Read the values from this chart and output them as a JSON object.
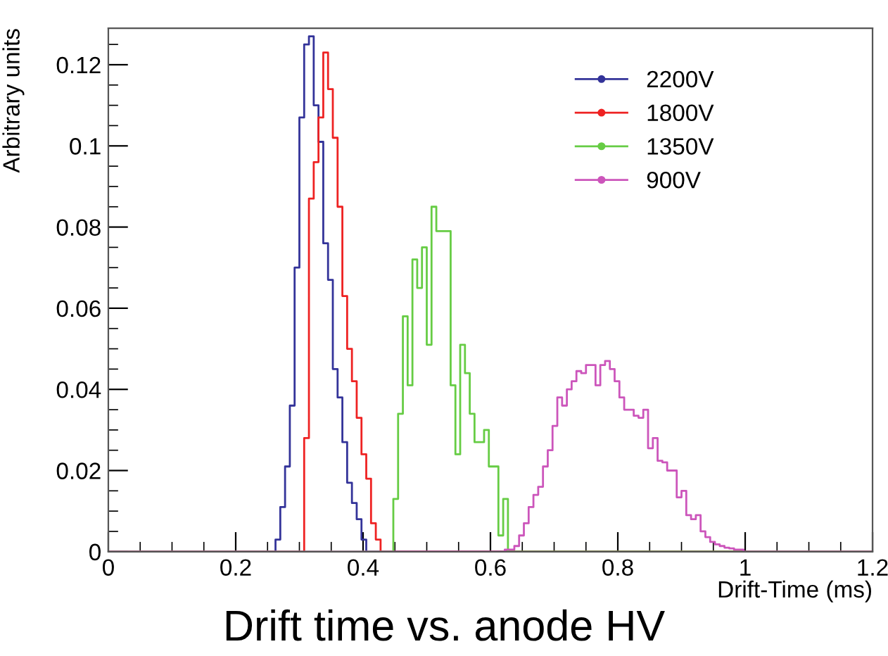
{
  "chart_data": {
    "type": "step",
    "title": "Drift time vs. anode HV",
    "xlabel": "Drift-Time (ms)",
    "ylabel": "Arbitrary units",
    "xlim": [
      0,
      1.2
    ],
    "ylim": [
      0,
      0.129
    ],
    "xticks": [
      0,
      0.2,
      0.4,
      0.6,
      0.8,
      1,
      1.2
    ],
    "yticks": [
      0,
      0.02,
      0.04,
      0.06,
      0.08,
      0.1,
      0.12
    ],
    "legend": "top right",
    "grid": false,
    "series": [
      {
        "name": "2200V",
        "color": "#333399",
        "x": [
          0,
          0.2625,
          0.27,
          0.2775,
          0.285,
          0.2925,
          0.3,
          0.3075,
          0.315,
          0.3225,
          0.33,
          0.3375,
          0.345,
          0.3525,
          0.36,
          0.3675,
          0.375,
          0.3825,
          0.39,
          0.3975,
          0.405,
          1.2
        ],
        "values": [
          0,
          0.003,
          0.011,
          0.021,
          0.036,
          0.07,
          0.107,
          0.125,
          0.127,
          0.11,
          0.101,
          0.076,
          0.067,
          0.045,
          0.038,
          0.027,
          0.017,
          0.012,
          0.008,
          0.003,
          0,
          0
        ]
      },
      {
        "name": "1800V",
        "color": "#ee2222",
        "x": [
          0,
          0.3075,
          0.315,
          0.3225,
          0.33,
          0.3375,
          0.345,
          0.3525,
          0.36,
          0.3675,
          0.375,
          0.3825,
          0.39,
          0.3975,
          0.405,
          0.4125,
          0.42,
          0.4275,
          1.2
        ],
        "values": [
          0,
          0.028,
          0.087,
          0.096,
          0.107,
          0.123,
          0.114,
          0.102,
          0.085,
          0.063,
          0.05,
          0.042,
          0.033,
          0.024,
          0.018,
          0.007,
          0.003,
          0,
          0
        ]
      },
      {
        "name": "1350V",
        "color": "#66cc44",
        "x": [
          0,
          0.4475,
          0.455,
          0.4625,
          0.47,
          0.4775,
          0.485,
          0.4925,
          0.5,
          0.5075,
          0.515,
          0.5225,
          0.53,
          0.5375,
          0.545,
          0.5525,
          0.56,
          0.5675,
          0.575,
          0.5825,
          0.59,
          0.5975,
          0.605,
          0.6125,
          0.62,
          0.6275,
          1.2
        ],
        "values": [
          0,
          0.013,
          0.034,
          0.058,
          0.041,
          0.072,
          0.065,
          0.075,
          0.051,
          0.085,
          0.079,
          0.079,
          0.079,
          0.041,
          0.024,
          0.051,
          0.044,
          0.034,
          0.027,
          0.027,
          0.03,
          0.021,
          0.021,
          0.004,
          0.013,
          0,
          0
        ]
      },
      {
        "name": "900V",
        "color": "#cc55bb",
        "x": [
          0,
          0.6225,
          0.63,
          0.6375,
          0.645,
          0.6525,
          0.66,
          0.6675,
          0.675,
          0.6825,
          0.69,
          0.6975,
          0.705,
          0.7125,
          0.72,
          0.7275,
          0.735,
          0.7425,
          0.75,
          0.7575,
          0.765,
          0.7725,
          0.78,
          0.7875,
          0.795,
          0.8025,
          0.81,
          0.8175,
          0.825,
          0.8325,
          0.84,
          0.8475,
          0.855,
          0.8625,
          0.87,
          0.8775,
          0.885,
          0.8925,
          0.9,
          0.9075,
          0.915,
          0.9225,
          0.93,
          0.9375,
          0.945,
          0.9525,
          0.96,
          0.9675,
          0.975,
          0.9825,
          0.99,
          0.9975,
          1.2
        ],
        "values": [
          0,
          0.0005,
          0.0005,
          0.0014,
          0.004,
          0.007,
          0.011,
          0.014,
          0.016,
          0.021,
          0.025,
          0.031,
          0.038,
          0.036,
          0.04,
          0.042,
          0.0445,
          0.044,
          0.046,
          0.046,
          0.041,
          0.046,
          0.047,
          0.045,
          0.042,
          0.038,
          0.035,
          0.035,
          0.0335,
          0.033,
          0.035,
          0.0255,
          0.028,
          0.0224,
          0.022,
          0.02,
          0.02,
          0.0134,
          0.015,
          0.009,
          0.008,
          0.009,
          0.005,
          0.0036,
          0.0024,
          0.0018,
          0.0014,
          0.001,
          0.0008,
          0.0005,
          0.0005,
          0,
          0
        ]
      }
    ]
  }
}
